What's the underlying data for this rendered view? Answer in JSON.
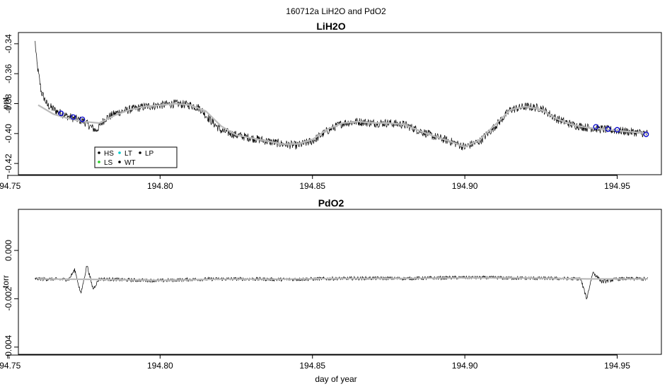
{
  "figure": {
    "suptitle": "160712a   LiH2O and PdO2",
    "shared_xlabel": "day of year"
  },
  "chart_data": [
    {
      "type": "line",
      "title": "LiH2O",
      "ylabel": "ppt",
      "xlabel": "",
      "xlim": [
        194.7535,
        194.9645
      ],
      "ylim": [
        -0.4275,
        -0.3325
      ],
      "x_ticks": [
        194.75,
        194.8,
        194.85,
        194.9,
        194.95
      ],
      "x_tick_labels": [
        "194.75",
        "194.80",
        "194.85",
        "194.90",
        "194.95"
      ],
      "y_ticks": [
        -0.42,
        -0.4,
        -0.38,
        -0.36,
        -0.34
      ],
      "y_tick_labels": [
        "-0.42",
        "-0.40",
        "-0.38",
        "-0.36",
        "-0.34"
      ],
      "grid": false,
      "legend": {
        "placement": "bottom-left",
        "entries": [
          {
            "label": "HS",
            "color": "#000000"
          },
          {
            "label": "LS",
            "color": "#22cc22"
          },
          {
            "label": "LT",
            "color": "#00cccc"
          },
          {
            "label": "WT",
            "color": "#000000"
          },
          {
            "label": "LP",
            "color": "#000000"
          }
        ]
      },
      "series": [
        {
          "role": "raw",
          "color": "#000000",
          "x": [
            194.759,
            194.7595,
            194.761,
            194.763,
            194.766,
            194.769,
            194.772,
            194.775,
            194.777,
            194.779,
            194.782,
            194.786,
            194.79,
            194.795,
            194.8,
            194.805,
            194.81,
            194.813,
            194.816,
            194.82,
            194.825,
            194.83,
            194.835,
            194.84,
            194.845,
            194.85,
            194.855,
            194.86,
            194.865,
            194.87,
            194.875,
            194.88,
            194.885,
            194.89,
            194.895,
            194.9,
            194.905,
            194.91,
            194.915,
            194.92,
            194.925,
            194.93,
            194.935,
            194.94,
            194.945,
            194.95,
            194.955,
            194.96
          ],
          "y": [
            -0.339,
            -0.352,
            -0.372,
            -0.381,
            -0.385,
            -0.388,
            -0.39,
            -0.392,
            -0.395,
            -0.398,
            -0.39,
            -0.386,
            -0.384,
            -0.382,
            -0.381,
            -0.38,
            -0.381,
            -0.383,
            -0.39,
            -0.398,
            -0.401,
            -0.403,
            -0.405,
            -0.407,
            -0.408,
            -0.405,
            -0.398,
            -0.393,
            -0.392,
            -0.393,
            -0.393,
            -0.394,
            -0.398,
            -0.402,
            -0.405,
            -0.409,
            -0.405,
            -0.395,
            -0.384,
            -0.382,
            -0.383,
            -0.39,
            -0.394,
            -0.396,
            -0.397,
            -0.398,
            -0.399,
            -0.4
          ]
        },
        {
          "role": "smoothed",
          "color": "#bbbbbb",
          "x": [
            194.76,
            194.765,
            194.77,
            194.775,
            194.78,
            194.785,
            194.79,
            194.795,
            194.8,
            194.805,
            194.81,
            194.815,
            194.82,
            194.825,
            194.83,
            194.835,
            194.84,
            194.845,
            194.85,
            194.855,
            194.86,
            194.865,
            194.87,
            194.875,
            194.88,
            194.885,
            194.89,
            194.895,
            194.9,
            194.905,
            194.91,
            194.915,
            194.92,
            194.925,
            194.93,
            194.935,
            194.94,
            194.945,
            194.95,
            194.955,
            194.96
          ],
          "y": [
            -0.381,
            -0.387,
            -0.39,
            -0.392,
            -0.393,
            -0.388,
            -0.384,
            -0.382,
            -0.381,
            -0.38,
            -0.381,
            -0.385,
            -0.395,
            -0.401,
            -0.403,
            -0.405,
            -0.407,
            -0.407,
            -0.404,
            -0.397,
            -0.393,
            -0.392,
            -0.393,
            -0.393,
            -0.394,
            -0.398,
            -0.402,
            -0.405,
            -0.409,
            -0.404,
            -0.394,
            -0.384,
            -0.382,
            -0.384,
            -0.39,
            -0.394,
            -0.396,
            -0.397,
            -0.398,
            -0.399,
            -0.4
          ]
        }
      ],
      "markers": [
        {
          "x": 194.7675,
          "y": -0.3865,
          "color": "#0000cc"
        },
        {
          "x": 194.7715,
          "y": -0.389,
          "color": "#0000cc"
        },
        {
          "x": 194.7745,
          "y": -0.3905,
          "color": "#0000cc"
        },
        {
          "x": 194.943,
          "y": -0.3955,
          "color": "#0000cc"
        },
        {
          "x": 194.947,
          "y": -0.397,
          "color": "#0000cc"
        },
        {
          "x": 194.95,
          "y": -0.3975,
          "color": "#0000cc"
        },
        {
          "x": 194.9595,
          "y": -0.4005,
          "color": "#0000cc"
        }
      ]
    },
    {
      "type": "line",
      "title": "PdO2",
      "ylabel": "torr",
      "xlabel": "day of year",
      "xlim": [
        194.7535,
        194.9645
      ],
      "ylim": [
        -0.0043,
        0.0017
      ],
      "x_ticks": [
        194.75,
        194.8,
        194.85,
        194.9,
        194.95
      ],
      "x_tick_labels": [
        "194.75",
        "194.80",
        "194.85",
        "194.90",
        "194.95"
      ],
      "y_ticks": [
        -0.004,
        -0.002,
        0.0
      ],
      "y_tick_labels": [
        "-0.004",
        "-0.002",
        "0.000"
      ],
      "grid": false,
      "series": [
        {
          "role": "raw",
          "color": "#000000",
          "x": [
            194.759,
            194.765,
            194.77,
            194.772,
            194.774,
            194.776,
            194.778,
            194.78,
            194.79,
            194.8,
            194.81,
            194.82,
            194.83,
            194.84,
            194.85,
            194.86,
            194.87,
            194.88,
            194.89,
            194.9,
            194.91,
            194.92,
            194.93,
            194.938,
            194.94,
            194.942,
            194.945,
            194.95,
            194.955,
            194.96
          ],
          "y": [
            -0.00118,
            -0.00119,
            -0.0012,
            -0.0008,
            -0.0018,
            -0.0006,
            -0.0016,
            -0.00118,
            -0.00122,
            -0.00125,
            -0.0012,
            -0.00118,
            -0.00118,
            -0.0012,
            -0.00118,
            -0.00116,
            -0.00115,
            -0.00116,
            -0.00114,
            -0.00112,
            -0.00113,
            -0.00115,
            -0.00116,
            -0.00118,
            -0.002,
            -0.0009,
            -0.0013,
            -0.00118,
            -0.00117,
            -0.00118
          ]
        },
        {
          "role": "smoothed",
          "color": "#bbbbbb",
          "x": [
            194.76,
            194.78,
            194.8,
            194.82,
            194.84,
            194.86,
            194.88,
            194.9,
            194.92,
            194.94,
            194.96
          ],
          "y": [
            -0.00118,
            -0.0012,
            -0.00124,
            -0.00119,
            -0.00119,
            -0.00116,
            -0.00116,
            -0.00113,
            -0.00114,
            -0.00118,
            -0.00118
          ]
        }
      ],
      "markers": []
    }
  ]
}
